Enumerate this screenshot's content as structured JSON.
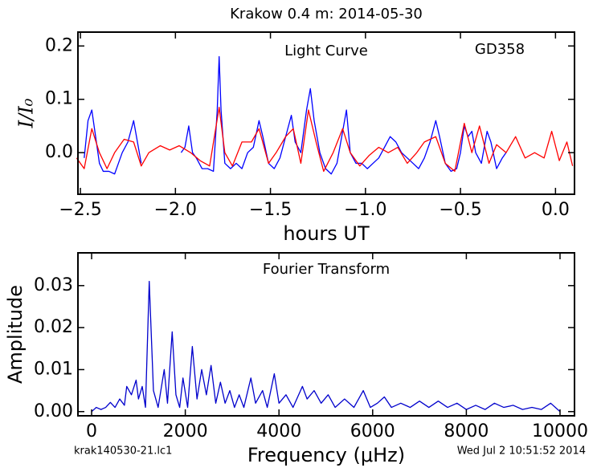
{
  "chart_data": [
    {
      "type": "line",
      "title": "Krakow 0.4 m:  2014-05-30",
      "annotations": [
        "Light Curve",
        "GD358"
      ],
      "xlabel": "hours UT",
      "ylabel": "I/I₀",
      "xlim": [
        -2.513,
        0.1
      ],
      "ylim": [
        -0.078,
        0.226
      ],
      "xticks": [
        {
          "value": -2.5,
          "label": "−2.5"
        },
        {
          "value": -2.0,
          "label": "−2.0"
        },
        {
          "value": -1.5,
          "label": "−1.5"
        },
        {
          "value": -1.0,
          "label": "−1.0"
        },
        {
          "value": -0.5,
          "label": "−0.5"
        },
        {
          "value": 0,
          "label": "0.0"
        }
      ],
      "yticks": [
        {
          "value": 0,
          "label": "0.0"
        },
        0.1,
        0.2
      ],
      "series": [
        {
          "color": "#0000ff",
          "x": [
            -2.48,
            -2.46,
            -2.44,
            -2.42,
            -2.4,
            -2.38,
            -2.35,
            -2.32,
            -2.3,
            -2.28,
            -2.25,
            -2.22,
            -2.2,
            -2.18,
            -2.1,
            -1.97,
            -1.95,
            -1.93,
            -1.91,
            -1.89,
            -1.86,
            -1.83,
            -1.8,
            -1.78,
            -1.77,
            -1.76,
            -1.74,
            -1.71,
            -1.68,
            -1.65,
            -1.62,
            -1.59,
            -1.56,
            -1.54,
            -1.51,
            -1.48,
            -1.45,
            -1.42,
            -1.39,
            -1.37,
            -1.34,
            -1.31,
            -1.29,
            -1.27,
            -1.24,
            -1.21,
            -1.18,
            -1.15,
            -1.12,
            -1.1,
            -1.08,
            -1.05,
            -1.02,
            -0.99,
            -0.96,
            -0.93,
            -0.9,
            -0.87,
            -0.84,
            -0.81,
            -0.78,
            -0.75,
            -0.72,
            -0.69,
            -0.66,
            -0.63,
            -0.61,
            -0.58,
            -0.55,
            -0.52,
            -0.5,
            -0.48,
            -0.46,
            -0.44,
            -0.42,
            -0.39,
            -0.36,
            -0.34,
            -0.31,
            -0.28,
            -0.26
          ],
          "values": [
            -0.01,
            0.06,
            0.08,
            0.03,
            -0.02,
            -0.035,
            -0.035,
            -0.04,
            -0.02,
            0.0,
            0.02,
            0.06,
            0.02,
            -0.02,
            null,
            0.0,
            0.01,
            0.05,
            0.0,
            -0.01,
            -0.03,
            -0.03,
            -0.035,
            0.08,
            0.18,
            0.08,
            -0.02,
            -0.03,
            -0.02,
            -0.03,
            0.0,
            0.01,
            0.06,
            0.03,
            -0.02,
            -0.03,
            -0.01,
            0.03,
            0.07,
            0.02,
            0.0,
            0.08,
            0.12,
            0.06,
            0.0,
            -0.03,
            -0.04,
            -0.02,
            0.04,
            0.08,
            0.0,
            -0.02,
            -0.02,
            -0.03,
            -0.02,
            -0.01,
            0.01,
            0.03,
            0.02,
            0.0,
            -0.01,
            -0.02,
            -0.03,
            -0.01,
            0.02,
            0.06,
            0.03,
            -0.02,
            -0.035,
            -0.03,
            0.0,
            0.05,
            0.03,
            0.04,
            0.0,
            -0.02,
            0.04,
            0.02,
            -0.03,
            -0.01,
            0.0
          ]
        },
        {
          "color": "#ff0000",
          "x": [
            -2.52,
            -2.48,
            -2.44,
            -2.4,
            -2.36,
            -2.32,
            -2.27,
            -2.22,
            -2.18,
            -2.14,
            -2.08,
            -2.03,
            -1.98,
            -1.92,
            -1.87,
            -1.82,
            -1.77,
            -1.74,
            -1.7,
            -1.65,
            -1.6,
            -1.56,
            -1.51,
            -1.47,
            -1.42,
            -1.38,
            -1.34,
            -1.3,
            -1.26,
            -1.22,
            -1.17,
            -1.12,
            -1.08,
            -1.03,
            -0.98,
            -0.93,
            -0.88,
            -0.83,
            -0.78,
            -0.73,
            -0.69,
            -0.63,
            -0.58,
            -0.53,
            -0.48,
            -0.44,
            -0.4,
            -0.35,
            -0.31,
            -0.26,
            -0.21,
            -0.16,
            -0.11,
            -0.06,
            -0.02,
            0.02,
            0.06,
            0.09
          ],
          "values": [
            -0.01,
            -0.03,
            0.045,
            0.0,
            -0.03,
            0.0,
            0.025,
            0.02,
            -0.025,
            0.0,
            0.013,
            0.005,
            0.013,
            0.0,
            -0.015,
            -0.025,
            0.085,
            0.0,
            -0.025,
            0.02,
            0.02,
            0.045,
            -0.02,
            0.0,
            0.03,
            0.045,
            -0.02,
            0.08,
            0.02,
            -0.035,
            0.0,
            0.045,
            0.0,
            -0.025,
            -0.005,
            0.01,
            0.0,
            0.01,
            -0.02,
            0.0,
            0.02,
            0.03,
            -0.02,
            -0.035,
            0.055,
            0.0,
            0.05,
            -0.02,
            0.015,
            0.0,
            0.03,
            -0.01,
            0.0,
            -0.01,
            0.04,
            -0.015,
            0.02,
            -0.025
          ]
        }
      ]
    },
    {
      "type": "line",
      "annotations": [
        "Fourier Transform"
      ],
      "xlabel": "Frequency (μHz)",
      "ylabel": "Amplitude",
      "xlim": [
        -292,
        10309
      ],
      "ylim": [
        -0.001,
        0.0378
      ],
      "xticks": [
        0,
        2000,
        4000,
        6000,
        8000,
        10000
      ],
      "yticks": [
        {
          "value": 0,
          "label": "0.00"
        },
        {
          "value": 0.01,
          "label": "0.01"
        },
        {
          "value": 0.02,
          "label": "0.02"
        },
        {
          "value": 0.03,
          "label": "0.03"
        }
      ],
      "series": [
        {
          "color": "#0000cc",
          "x": [
            0,
            100,
            200,
            300,
            400,
            500,
            600,
            700,
            750,
            850,
            950,
            1000,
            1080,
            1150,
            1230,
            1320,
            1420,
            1550,
            1620,
            1720,
            1800,
            1880,
            1950,
            2050,
            2150,
            2250,
            2350,
            2450,
            2550,
            2650,
            2750,
            2850,
            2950,
            3050,
            3150,
            3250,
            3400,
            3500,
            3650,
            3750,
            3900,
            4000,
            4150,
            4300,
            4500,
            4600,
            4750,
            4900,
            5050,
            5200,
            5400,
            5600,
            5800,
            5950,
            6100,
            6250,
            6400,
            6600,
            6800,
            7000,
            7200,
            7400,
            7600,
            7800,
            8000,
            8200,
            8400,
            8600,
            8800,
            9000,
            9200,
            9400,
            9600,
            9800,
            10000
          ],
          "values": [
            0,
            0.001,
            0.0005,
            0.001,
            0.0022,
            0.001,
            0.003,
            0.0015,
            0.006,
            0.004,
            0.0075,
            0.003,
            0.006,
            0.001,
            0.031,
            0.005,
            0.001,
            0.01,
            0.002,
            0.019,
            0.004,
            0.001,
            0.008,
            0.001,
            0.0155,
            0.003,
            0.01,
            0.004,
            0.011,
            0.002,
            0.007,
            0.002,
            0.005,
            0.001,
            0.004,
            0.001,
            0.008,
            0.002,
            0.005,
            0.001,
            0.009,
            0.002,
            0.004,
            0.001,
            0.006,
            0.003,
            0.005,
            0.002,
            0.004,
            0.001,
            0.003,
            0.001,
            0.005,
            0.001,
            0.002,
            0.0035,
            0.001,
            0.002,
            0.001,
            0.0025,
            0.001,
            0.0025,
            0.001,
            0.002,
            0.0005,
            0.0015,
            0.0005,
            0.002,
            0.001,
            0.0015,
            0.0005,
            0.001,
            0.0005,
            0.002,
            0.0
          ]
        }
      ]
    }
  ],
  "footer": {
    "left": "krak140530-21.lc1",
    "right": "Wed Jul  2 10:51:52 2014"
  }
}
